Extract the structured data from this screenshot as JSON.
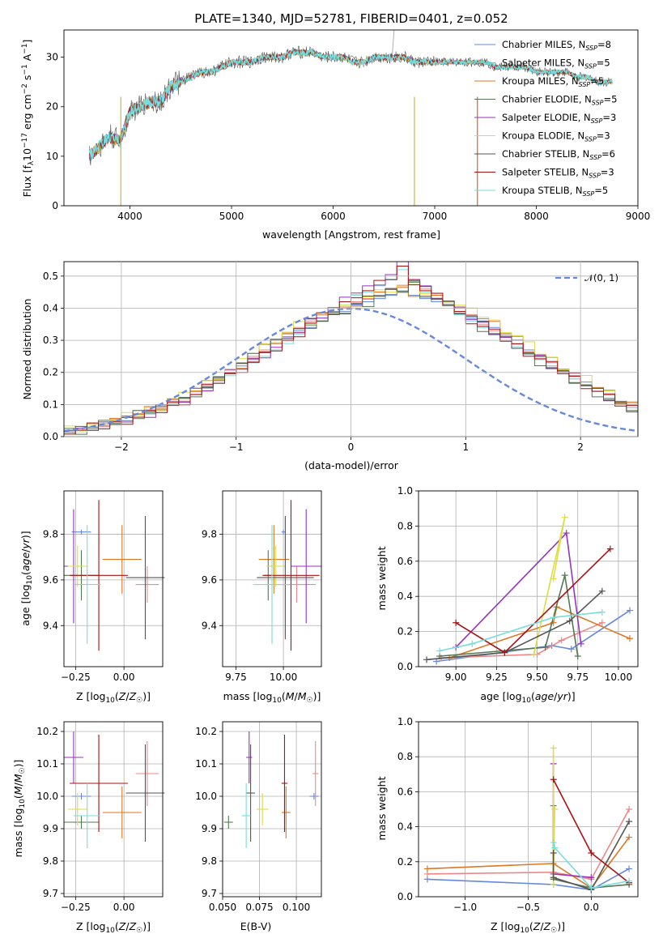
{
  "chart_data": [
    {
      "type": "line",
      "title": "PLATE=1340, MJD=52781, FIBERID=0401, z=0.052",
      "xlabel": "wavelength [Angstrom, rest frame]",
      "ylabel": "Flux [f_λ10^-17 erg cm^-2 s^-1 A^-1]",
      "xlim": [
        3350,
        9000
      ],
      "ylim": [
        0,
        35.5
      ],
      "xticks": [
        "4000",
        "5000",
        "6000",
        "7000",
        "8000",
        "9000"
      ],
      "yticks": [
        "0",
        "10",
        "20",
        "30"
      ],
      "spectrum_range": [
        3600,
        8750
      ],
      "legend_position": "upper right",
      "spectrum": {
        "x": [
          3600,
          3700,
          3800,
          3900,
          4000,
          4100,
          4200,
          4300,
          4400,
          4500,
          4600,
          4700,
          4800,
          4900,
          5000,
          5100,
          5200,
          5300,
          5400,
          5500,
          5600,
          5700,
          5800,
          5900,
          6000,
          6100,
          6200,
          6300,
          6400,
          6500,
          6600,
          6700,
          6800,
          6900,
          7000,
          7100,
          7200,
          7300,
          7400,
          7500,
          7600,
          7700,
          7800,
          7900,
          8000,
          8100,
          8200,
          8300,
          8400,
          8500,
          8600,
          8700
        ],
        "y": [
          10,
          12,
          14,
          13,
          19,
          20,
          21,
          21,
          24,
          25,
          26,
          27,
          27,
          28,
          29,
          29,
          29,
          30,
          30,
          30,
          31,
          31,
          31,
          30,
          30,
          30,
          29,
          29,
          30,
          30,
          30,
          30,
          29,
          29,
          29,
          29,
          29,
          29,
          29,
          29,
          28,
          28,
          28,
          28,
          27,
          27,
          27,
          27,
          26,
          26,
          25,
          25
        ]
      },
      "series": [
        {
          "name": "Chabrier MILES",
          "nssp": "8",
          "color": "#6688dd"
        },
        {
          "name": "Salpeter MILES",
          "nssp": "5",
          "color": "#ee8888"
        },
        {
          "name": "Kroupa MILES",
          "nssp": "5",
          "color": "#dd7722"
        },
        {
          "name": "Chabrier ELODIE",
          "nssp": "5",
          "color": "#557755"
        },
        {
          "name": "Salpeter ELODIE",
          "nssp": "3",
          "color": "#9933bb"
        },
        {
          "name": "Kroupa ELODIE",
          "nssp": "3",
          "color": "#dddd44"
        },
        {
          "name": "Chabrier STELIB",
          "nssp": "6",
          "color": "#555555"
        },
        {
          "name": "Salpeter STELIB",
          "nssp": "3",
          "color": "#aa1111"
        },
        {
          "name": "Kroupa STELIB",
          "nssp": "5",
          "color": "#77dddd"
        }
      ]
    },
    {
      "type": "step",
      "xlabel": "(data-model)/error",
      "ylabel": "Normed distribution",
      "xlim": [
        -2.5,
        2.5
      ],
      "ylim": [
        0,
        0.545
      ],
      "xticks": [
        "−2",
        "−1",
        "0",
        "1",
        "2"
      ],
      "yticks": [
        "0.0",
        "0.1",
        "0.2",
        "0.3",
        "0.4",
        "0.5"
      ],
      "grid": true,
      "legend": "𝒩(0, 1)",
      "legend_position": "upper right",
      "bin_width": 0.1,
      "histograms": [
        {
          "color": "#6688dd",
          "values": [
            0.02,
            0.02,
            0.03,
            0.04,
            0.05,
            0.06,
            0.07,
            0.08,
            0.09,
            0.11,
            0.12,
            0.14,
            0.16,
            0.18,
            0.2,
            0.22,
            0.24,
            0.27,
            0.29,
            0.31,
            0.33,
            0.34,
            0.36,
            0.38,
            0.39,
            0.41,
            0.42,
            0.43,
            0.44,
            0.45,
            0.44,
            0.43,
            0.42,
            0.41,
            0.39,
            0.37,
            0.36,
            0.34,
            0.32,
            0.3,
            0.27,
            0.25,
            0.23,
            0.21,
            0.19,
            0.17,
            0.15,
            0.13,
            0.11,
            0.1,
            0.08,
            0.07,
            0.06,
            0.05,
            0.04,
            0.04,
            0.03,
            0.03,
            0.02,
            0.02
          ]
        },
        {
          "color": "#ee8888",
          "values": [
            0.02,
            0.02,
            0.03,
            0.04,
            0.05,
            0.06,
            0.07,
            0.08,
            0.09,
            0.11,
            0.12,
            0.14,
            0.16,
            0.18,
            0.21,
            0.23,
            0.25,
            0.27,
            0.3,
            0.32,
            0.34,
            0.36,
            0.37,
            0.38,
            0.4,
            0.42,
            0.43,
            0.45,
            0.46,
            0.47,
            0.49,
            0.46,
            0.44,
            0.42,
            0.4,
            0.38,
            0.35,
            0.33,
            0.31,
            0.29,
            0.26,
            0.24,
            0.22,
            0.2,
            0.18,
            0.16,
            0.14,
            0.12,
            0.1,
            0.09,
            0.08,
            0.07,
            0.06,
            0.05,
            0.04,
            0.03,
            0.03,
            0.02,
            0.02,
            0.02
          ]
        },
        {
          "color": "#77dddd",
          "values": [
            0.02,
            0.02,
            0.03,
            0.03,
            0.04,
            0.05,
            0.06,
            0.07,
            0.08,
            0.1,
            0.11,
            0.13,
            0.15,
            0.17,
            0.19,
            0.21,
            0.23,
            0.25,
            0.27,
            0.29,
            0.32,
            0.35,
            0.37,
            0.39,
            0.41,
            0.44,
            0.45,
            0.47,
            0.49,
            0.52,
            0.48,
            0.45,
            0.43,
            0.41,
            0.38,
            0.36,
            0.34,
            0.32,
            0.3,
            0.28,
            0.26,
            0.24,
            0.22,
            0.2,
            0.18,
            0.16,
            0.14,
            0.12,
            0.1,
            0.09,
            0.08,
            0.07,
            0.06,
            0.05,
            0.04,
            0.04,
            0.03,
            0.02,
            0.02,
            0.02
          ]
        }
      ],
      "normal_curve": {
        "mean": 0,
        "std": 1,
        "color": "#6688dd"
      }
    },
    {
      "type": "errorbar",
      "xlabel": "Z [log10(Z/Z☉)]",
      "ylabel": "age [log10(age/yr)]",
      "xlim": [
        -0.31,
        0.2
      ],
      "ylim": [
        9.22,
        9.99
      ],
      "xticks": [
        "−0.25",
        "0.00"
      ],
      "yticks": [
        "9.4",
        "9.6",
        "9.8"
      ],
      "grid": true
    },
    {
      "type": "errorbar",
      "xlabel": "mass [log10(M/M☉)]",
      "ylabel": "",
      "xlim": [
        9.68,
        10.2
      ],
      "ylim": [
        9.22,
        9.99
      ],
      "xticks": [
        "9.75",
        "10.00"
      ],
      "yticks": [
        "9.4",
        "9.6",
        "9.8"
      ],
      "grid": true
    },
    {
      "type": "line",
      "xlabel": "age [log10(age/yr)]",
      "ylabel": "mass weight",
      "xlim": [
        8.77,
        10.12
      ],
      "ylim": [
        0,
        1
      ],
      "xticks": [
        "9.00",
        "9.25",
        "9.50",
        "9.75",
        "10.00"
      ],
      "yticks": [
        "0.0",
        "0.2",
        "0.4",
        "0.6",
        "0.8",
        "1.0"
      ],
      "grid": true
    },
    {
      "type": "errorbar",
      "xlabel": "Z [log10(Z/Z☉)]",
      "ylabel": "mass [log10(M/M☉)]",
      "xlim": [
        -0.31,
        0.2
      ],
      "ylim": [
        9.69,
        10.23
      ],
      "xticks": [
        "−0.25",
        "0.00"
      ],
      "yticks": [
        "9.7",
        "9.8",
        "9.9",
        "10.0",
        "10.1",
        "10.2"
      ],
      "grid": true
    },
    {
      "type": "errorbar",
      "xlabel": "E(B-V)",
      "ylabel": "",
      "xlim": [
        0.05,
        0.117
      ],
      "ylim": [
        9.69,
        10.23
      ],
      "xticks": [
        "0.050",
        "0.075",
        "0.100"
      ],
      "yticks": [
        "9.7",
        "9.8",
        "9.9",
        "10.0",
        "10.1",
        "10.2"
      ],
      "grid": true
    },
    {
      "type": "line",
      "xlabel": "Z [log10(Z/Z☉)]",
      "ylabel": "mass weight",
      "xlim": [
        -1.37,
        0.37
      ],
      "ylim": [
        0,
        1
      ],
      "xticks": [
        "−1.0",
        "−0.5",
        "0.0"
      ],
      "yticks": [
        "0.0",
        "0.2",
        "0.4",
        "0.6",
        "0.8",
        "1.0"
      ],
      "grid": true
    }
  ],
  "fits": [
    {
      "color": "#6688dd",
      "Z": -0.22,
      "Zerr": 0.05,
      "age": 9.81,
      "ageErr": 0.01,
      "mass": 10.0,
      "massErr": 0.01,
      "ebv": 0.112,
      "ebvErr": 0.003,
      "ageW": [
        [
          8.88,
          0.03
        ],
        [
          9.59,
          0.12
        ],
        [
          9.71,
          0.1
        ],
        [
          10.07,
          0.32
        ]
      ],
      "ZW": [
        [
          -1.3,
          0.1
        ],
        [
          -0.3,
          0.07
        ],
        [
          0.0,
          0.04
        ],
        [
          0.3,
          0.16
        ]
      ]
    },
    {
      "color": "#ee8888",
      "Z": 0.12,
      "Zerr": 0.06,
      "age": 9.58,
      "ageErr": 0.08,
      "mass": 10.07,
      "massErr": 0.1,
      "ebv": 0.113,
      "ebvErr": 0.002,
      "ageW": [
        [
          8.91,
          0.05
        ],
        [
          9.5,
          0.07
        ],
        [
          9.65,
          0.15
        ],
        [
          9.9,
          0.25
        ]
      ],
      "ZW": [
        [
          -1.3,
          0.13
        ],
        [
          -0.3,
          0.14
        ],
        [
          0.0,
          0.1
        ],
        [
          0.3,
          0.5
        ]
      ]
    },
    {
      "color": "#dd7722",
      "Z": -0.01,
      "Zerr": 0.1,
      "age": 9.69,
      "ageErr": 0.15,
      "mass": 9.95,
      "massErr": 0.08,
      "ebv": 0.093,
      "ebvErr": 0.003,
      "ageW": [
        [
          8.96,
          0.05
        ],
        [
          9.6,
          0.25
        ],
        [
          9.62,
          0.34
        ],
        [
          10.07,
          0.16
        ]
      ],
      "ZW": [
        [
          -1.3,
          0.16
        ],
        [
          -0.3,
          0.19
        ],
        [
          0.0,
          0.05
        ],
        [
          0.3,
          0.34
        ]
      ]
    },
    {
      "color": "#557755",
      "Z": -0.22,
      "Zerr": 0.09,
      "age": 9.62,
      "ageErr": 0.11,
      "mass": 9.92,
      "massErr": 0.02,
      "ebv": 0.054,
      "ebvErr": 0.003,
      "ageW": [
        [
          8.9,
          0.06
        ],
        [
          9.55,
          0.11
        ],
        [
          9.67,
          0.52
        ],
        [
          9.75,
          0.06
        ]
      ],
      "ZW": [
        [
          -0.3,
          0.52
        ],
        [
          -0.3,
          0.1
        ],
        [
          0.0,
          0.05
        ],
        [
          0.3,
          0.07
        ]
      ]
    },
    {
      "color": "#9933bb",
      "Z": -0.26,
      "Zerr": 0.05,
      "age": 9.66,
      "ageErr": 0.25,
      "mass": 10.12,
      "massErr": 0.08,
      "ebv": 0.068,
      "ebvErr": 0.002,
      "ageW": [
        [
          9.0,
          0.11
        ],
        [
          9.68,
          0.76
        ],
        [
          9.77,
          0.13
        ]
      ],
      "ZW": [
        [
          -0.3,
          0.76
        ],
        [
          -0.3,
          0.13
        ],
        [
          0.0,
          0.11
        ]
      ]
    },
    {
      "color": "#dddd44",
      "Z": -0.24,
      "Zerr": 0.05,
      "age": 9.66,
      "ageErr": 0.09,
      "mass": 9.96,
      "massErr": 0.05,
      "ebv": 0.077,
      "ebvErr": 0.004,
      "ageW": [
        [
          9.48,
          0.07
        ],
        [
          9.67,
          0.85
        ],
        [
          9.6,
          0.5
        ]
      ],
      "ZW": [
        [
          -0.3,
          0.85
        ],
        [
          -0.3,
          0.07
        ],
        [
          -0.29,
          0.5
        ]
      ]
    },
    {
      "color": "#555555",
      "Z": 0.11,
      "Zerr": 0.1,
      "age": 9.61,
      "ageErr": 0.27,
      "mass": 10.01,
      "massErr": 0.15,
      "ebv": 0.069,
      "ebvErr": 0.003,
      "ageW": [
        [
          8.82,
          0.04
        ],
        [
          9.3,
          0.08
        ],
        [
          9.7,
          0.26
        ],
        [
          9.9,
          0.43
        ]
      ],
      "ZW": [
        [
          -0.3,
          0.25
        ],
        [
          -0.3,
          0.11
        ],
        [
          0.0,
          0.04
        ],
        [
          0.3,
          0.43
        ]
      ]
    },
    {
      "color": "#aa1111",
      "Z": -0.13,
      "Zerr": 0.15,
      "age": 9.62,
      "ageErr": 0.33,
      "mass": 10.04,
      "massErr": 0.15,
      "ebv": 0.092,
      "ebvErr": 0.002,
      "ageW": [
        [
          9.0,
          0.25
        ],
        [
          9.3,
          0.08
        ],
        [
          9.95,
          0.67
        ]
      ],
      "ZW": [
        [
          -0.3,
          0.67
        ],
        [
          0.0,
          0.25
        ],
        [
          0.3,
          0.08
        ]
      ]
    },
    {
      "color": "#77dddd",
      "Z": -0.19,
      "Zerr": 0.07,
      "age": 9.58,
      "ageErr": 0.26,
      "mass": 9.94,
      "massErr": 0.1,
      "ebv": 0.066,
      "ebvErr": 0.003,
      "ageW": [
        [
          8.9,
          0.09
        ],
        [
          9.1,
          0.13
        ],
        [
          9.6,
          0.28
        ],
        [
          9.9,
          0.31
        ]
      ],
      "ZW": [
        [
          -0.3,
          0.31
        ],
        [
          -0.29,
          0.28
        ],
        [
          0.0,
          0.05
        ],
        [
          0.3,
          0.09
        ]
      ]
    }
  ]
}
